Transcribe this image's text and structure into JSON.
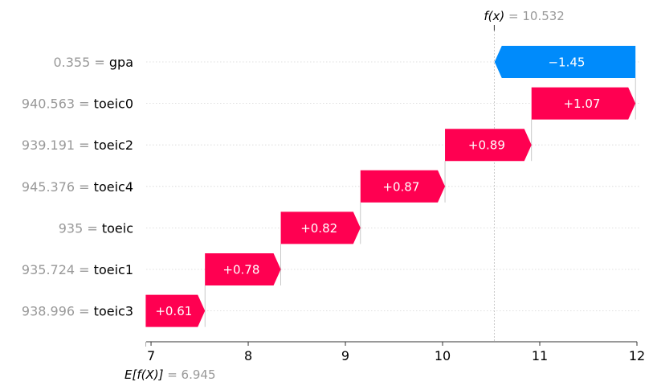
{
  "chart_data": {
    "type": "waterfall",
    "base_value": 6.945,
    "output_value": 10.532,
    "fx_label": "f(x)",
    "ex_label": "E[f(X)]",
    "xlim": [
      6.95,
      12.0
    ],
    "xticks": [
      7,
      8,
      9,
      10,
      11,
      12
    ],
    "colors": {
      "positive": "#ff0051",
      "negative": "#008bfb",
      "value_label": "#999999"
    },
    "features": [
      {
        "name": "gpa",
        "value_label": "0.355",
        "contribution": -1.45,
        "bar_label": "−1.45"
      },
      {
        "name": "toeic0",
        "value_label": "940.563",
        "contribution": 1.07,
        "bar_label": "+1.07"
      },
      {
        "name": "toeic2",
        "value_label": "939.191",
        "contribution": 0.89,
        "bar_label": "+0.89"
      },
      {
        "name": "toeic4",
        "value_label": "945.376",
        "contribution": 0.87,
        "bar_label": "+0.87"
      },
      {
        "name": "toeic",
        "value_label": "935",
        "contribution": 0.82,
        "bar_label": "+0.82"
      },
      {
        "name": "toeic1",
        "value_label": "935.724",
        "contribution": 0.78,
        "bar_label": "+0.78"
      },
      {
        "name": "toeic3",
        "value_label": "938.996",
        "contribution": 0.61,
        "bar_label": "+0.61"
      }
    ]
  }
}
